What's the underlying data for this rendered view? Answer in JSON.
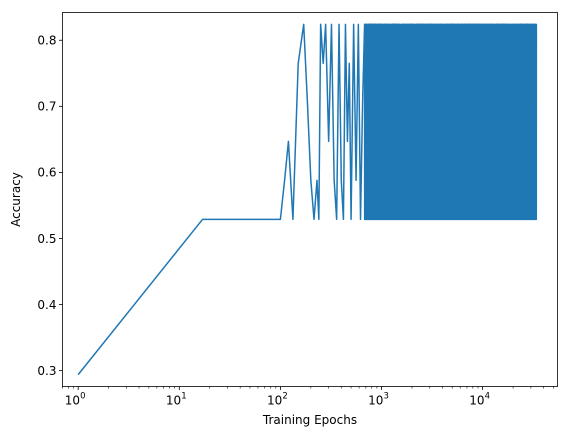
{
  "chart_data": {
    "type": "line",
    "title": "",
    "xlabel": "Training Epochs",
    "ylabel": "Accuracy",
    "xscale": "log",
    "xlim": [
      0.7,
      55000
    ],
    "ylim": [
      0.276,
      0.842
    ],
    "grid": false,
    "line_color": "#1f77b4",
    "x_ticks": [
      {
        "value": 1,
        "base": "10",
        "exp": "0"
      },
      {
        "value": 10,
        "base": "10",
        "exp": "1"
      },
      {
        "value": 100,
        "base": "10",
        "exp": "2"
      },
      {
        "value": 1000,
        "base": "10",
        "exp": "3"
      },
      {
        "value": 10000,
        "base": "10",
        "exp": "4"
      }
    ],
    "y_ticks": [
      {
        "value": 0.3,
        "label": "0.3"
      },
      {
        "value": 0.4,
        "label": "0.4"
      },
      {
        "value": 0.5,
        "label": "0.5"
      },
      {
        "value": 0.6,
        "label": "0.6"
      },
      {
        "value": 0.7,
        "label": "0.7"
      },
      {
        "value": 0.8,
        "label": "0.8"
      }
    ],
    "series": [
      {
        "values_explicit": [
          [
            1,
            0.294
          ],
          [
            17,
            0.529
          ],
          [
            100,
            0.529
          ],
          [
            110,
            0.588
          ],
          [
            120,
            0.647
          ],
          [
            133,
            0.529
          ],
          [
            150,
            0.765
          ],
          [
            170,
            0.824
          ],
          [
            185,
            0.706
          ],
          [
            200,
            0.588
          ],
          [
            215,
            0.529
          ],
          [
            230,
            0.588
          ],
          [
            240,
            0.529
          ],
          [
            250,
            0.824
          ],
          [
            265,
            0.765
          ],
          [
            280,
            0.824
          ],
          [
            300,
            0.647
          ],
          [
            320,
            0.824
          ],
          [
            340,
            0.588
          ],
          [
            360,
            0.529
          ],
          [
            380,
            0.824
          ],
          [
            400,
            0.588
          ],
          [
            420,
            0.529
          ],
          [
            440,
            0.824
          ],
          [
            460,
            0.647
          ],
          [
            480,
            0.765
          ],
          [
            500,
            0.529
          ],
          [
            530,
            0.824
          ],
          [
            560,
            0.588
          ],
          [
            590,
            0.824
          ],
          [
            620,
            0.529
          ],
          [
            650,
            0.706
          ],
          [
            680,
            0.824
          ]
        ],
        "dense_segment": {
          "from": 680,
          "to": 34000,
          "min": 0.529,
          "max": 0.824,
          "levels": [
            0.529,
            0.588,
            0.647,
            0.706,
            0.765,
            0.824
          ]
        }
      }
    ]
  }
}
